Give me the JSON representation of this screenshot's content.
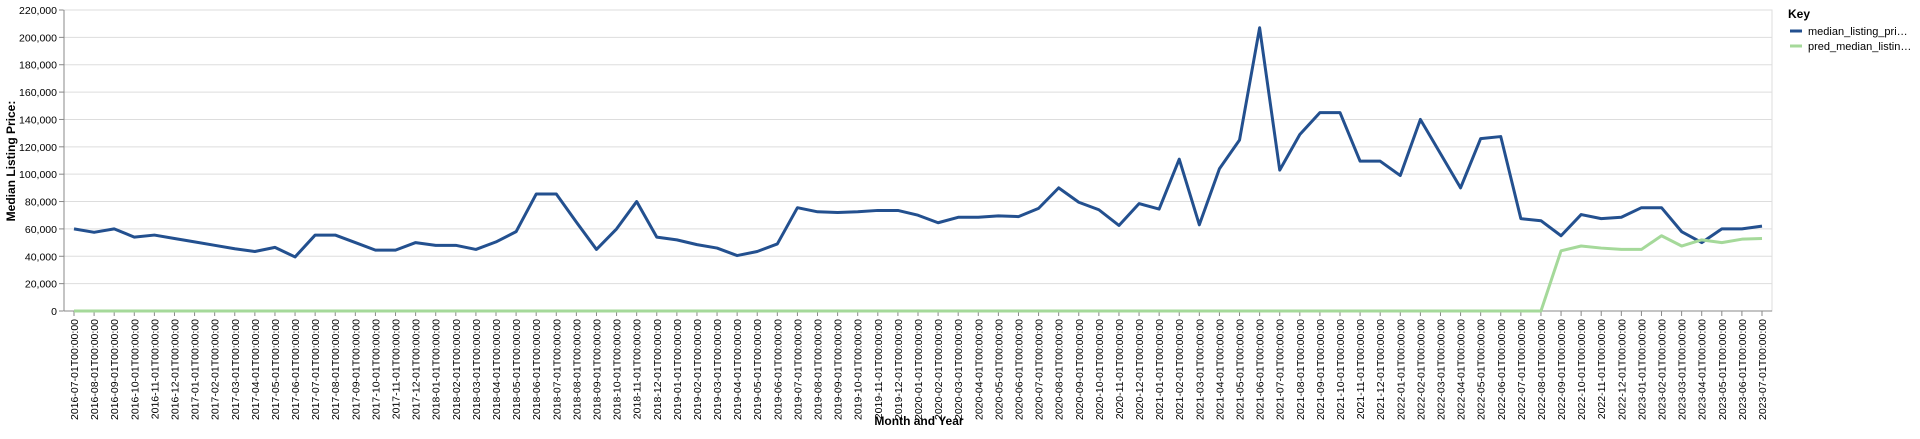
{
  "chart_data": {
    "type": "line",
    "x_label": "Month and Year",
    "y_label": "Median Listing Price:",
    "legend_title": "Key",
    "legend_position": "right",
    "grid": true,
    "categories": [
      "2016-07-01T00:00:00",
      "2016-08-01T00:00:00",
      "2016-09-01T00:00:00",
      "2016-10-01T00:00:00",
      "2016-11-01T00:00:00",
      "2016-12-01T00:00:00",
      "2017-01-01T00:00:00",
      "2017-02-01T00:00:00",
      "2017-03-01T00:00:00",
      "2017-04-01T00:00:00",
      "2017-05-01T00:00:00",
      "2017-06-01T00:00:00",
      "2017-07-01T00:00:00",
      "2017-08-01T00:00:00",
      "2017-09-01T00:00:00",
      "2017-10-01T00:00:00",
      "2017-11-01T00:00:00",
      "2017-12-01T00:00:00",
      "2018-01-01T00:00:00",
      "2018-02-01T00:00:00",
      "2018-03-01T00:00:00",
      "2018-04-01T00:00:00",
      "2018-05-01T00:00:00",
      "2018-06-01T00:00:00",
      "2018-07-01T00:00:00",
      "2018-08-01T00:00:00",
      "2018-09-01T00:00:00",
      "2018-10-01T00:00:00",
      "2018-11-01T00:00:00",
      "2018-12-01T00:00:00",
      "2019-01-01T00:00:00",
      "2019-02-01T00:00:00",
      "2019-03-01T00:00:00",
      "2019-04-01T00:00:00",
      "2019-05-01T00:00:00",
      "2019-06-01T00:00:00",
      "2019-07-01T00:00:00",
      "2019-08-01T00:00:00",
      "2019-09-01T00:00:00",
      "2019-10-01T00:00:00",
      "2019-11-01T00:00:00",
      "2019-12-01T00:00:00",
      "2020-01-01T00:00:00",
      "2020-02-01T00:00:00",
      "2020-03-01T00:00:00",
      "2020-04-01T00:00:00",
      "2020-05-01T00:00:00",
      "2020-06-01T00:00:00",
      "2020-07-01T00:00:00",
      "2020-08-01T00:00:00",
      "2020-09-01T00:00:00",
      "2020-10-01T00:00:00",
      "2020-11-01T00:00:00",
      "2020-12-01T00:00:00",
      "2021-01-01T00:00:00",
      "2021-02-01T00:00:00",
      "2021-03-01T00:00:00",
      "2021-04-01T00:00:00",
      "2021-05-01T00:00:00",
      "2021-06-01T00:00:00",
      "2021-07-01T00:00:00",
      "2021-08-01T00:00:00",
      "2021-09-01T00:00:00",
      "2021-10-01T00:00:00",
      "2021-11-01T00:00:00",
      "2021-12-01T00:00:00",
      "2022-01-01T00:00:00",
      "2022-02-01T00:00:00",
      "2022-03-01T00:00:00",
      "2022-04-01T00:00:00",
      "2022-05-01T00:00:00",
      "2022-06-01T00:00:00",
      "2022-07-01T00:00:00",
      "2022-08-01T00:00:00",
      "2022-09-01T00:00:00",
      "2022-10-01T00:00:00",
      "2022-11-01T00:00:00",
      "2022-12-01T00:00:00",
      "2023-01-01T00:00:00",
      "2023-02-01T00:00:00",
      "2023-03-01T00:00:00",
      "2023-04-01T00:00:00",
      "2023-05-01T00:00:00",
      "2023-06-01T00:00:00",
      "2023-07-01T00:00:00"
    ],
    "series": [
      {
        "name": "median_listing_pri…",
        "color": "#23508f",
        "values": [
          60000,
          57500,
          60000,
          54000,
          55500,
          53000,
          50500,
          48000,
          45500,
          43500,
          46500,
          39500,
          55500,
          55500,
          50000,
          44500,
          44500,
          50000,
          48000,
          48000,
          45000,
          50500,
          58000,
          85500,
          85500,
          65000,
          45000,
          60000,
          80000,
          54000,
          52000,
          48500,
          46000,
          40500,
          43500,
          49000,
          75500,
          72500,
          72000,
          72500,
          73500,
          73500,
          70000,
          64500,
          68500,
          68500,
          69500,
          69000,
          75000,
          90000,
          79500,
          74000,
          62500,
          78500,
          74500,
          111000,
          63000,
          104000,
          125000,
          207000,
          103000,
          129000,
          145000,
          145000,
          109500,
          109500,
          99000,
          140000,
          115000,
          90000,
          126000,
          127500,
          67500,
          66000,
          55000,
          70500,
          67500,
          68500,
          75500,
          75500,
          58000,
          50000,
          60000,
          60000,
          62000
        ]
      },
      {
        "name": "pred_median_listin…",
        "color": "#a5d99a",
        "values": [
          0,
          0,
          0,
          0,
          0,
          0,
          0,
          0,
          0,
          0,
          0,
          0,
          0,
          0,
          0,
          0,
          0,
          0,
          0,
          0,
          0,
          0,
          0,
          0,
          0,
          0,
          0,
          0,
          0,
          0,
          0,
          0,
          0,
          0,
          0,
          0,
          0,
          0,
          0,
          0,
          0,
          0,
          0,
          0,
          0,
          0,
          0,
          0,
          0,
          0,
          0,
          0,
          0,
          0,
          0,
          0,
          0,
          0,
          0,
          0,
          0,
          0,
          0,
          0,
          0,
          0,
          0,
          0,
          0,
          0,
          0,
          0,
          0,
          0,
          44000,
          47500,
          46000,
          45000,
          45000,
          55000,
          47500,
          52000,
          50000,
          52500,
          53000
        ]
      }
    ],
    "ylim": [
      0,
      220000
    ],
    "yticks": [
      0,
      {
        "value": 20000,
        "label": "20,000"
      },
      {
        "value": 40000,
        "label": "40,000"
      },
      {
        "value": 60000,
        "label": "60,000"
      },
      {
        "value": 80000,
        "label": "80,000"
      },
      {
        "value": 100000,
        "label": "100,000"
      },
      {
        "value": 120000,
        "label": "120,000"
      },
      {
        "value": 140000,
        "label": "140,000"
      },
      {
        "value": 160000,
        "label": "160,000"
      },
      {
        "value": 180000,
        "label": "180,000"
      },
      {
        "value": 200000,
        "label": "200,000"
      },
      {
        "value": 220000,
        "label": "220,000"
      }
    ]
  }
}
